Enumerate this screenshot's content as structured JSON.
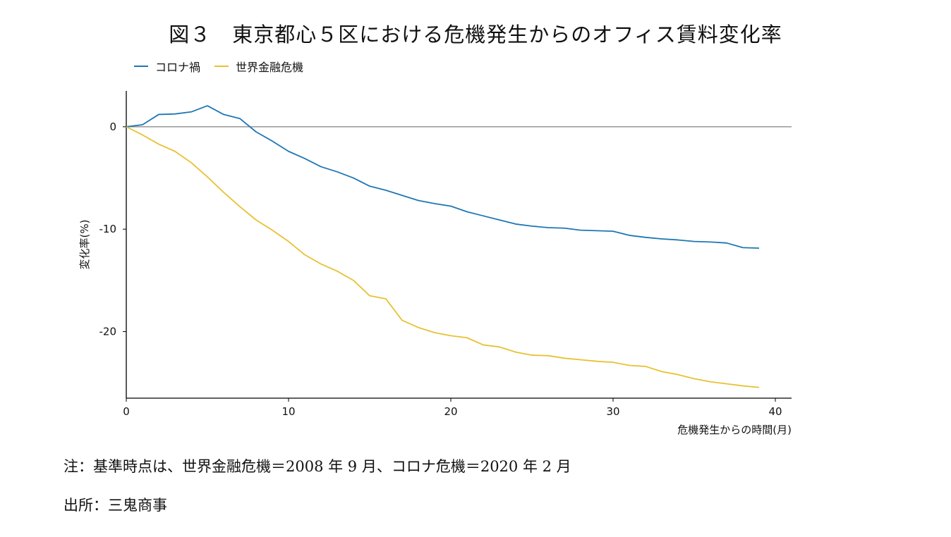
{
  "figure": {
    "title": "図３　東京都心５区における危機発生からのオフィス賃料変化率",
    "note": "注：基準時点は、世界金融危機＝2008 年 9 月、コロナ危機＝2020 年 2 月",
    "source": "出所：三鬼商事"
  },
  "chart_data": {
    "type": "line",
    "xlabel": "危機発生からの時間(月)",
    "ylabel": "変化率(%)",
    "xlim": [
      0,
      41
    ],
    "ylim": [
      -26.5,
      3.5
    ],
    "xticks": [
      0,
      10,
      20,
      30,
      40
    ],
    "yticks": [
      0,
      -10,
      -20
    ],
    "grid": false,
    "legend_position": "top-left",
    "zero_line": true,
    "series": [
      {
        "name": "コロナ禍",
        "color": "#1f77b4",
        "x": [
          0,
          1,
          2,
          3,
          4,
          5,
          6,
          7,
          8,
          9,
          10,
          11,
          12,
          13,
          14,
          15,
          16,
          17,
          18,
          19,
          20,
          21,
          22,
          23,
          24,
          25,
          26,
          27,
          28,
          29,
          30,
          31,
          32,
          33,
          34,
          35,
          36,
          37,
          38,
          39
        ],
        "values": [
          0,
          0.2,
          1.2,
          1.25,
          1.45,
          2.05,
          1.2,
          0.8,
          -0.5,
          -1.4,
          -2.4,
          -3.1,
          -3.9,
          -4.4,
          -5.0,
          -5.8,
          -6.2,
          -6.7,
          -7.2,
          -7.5,
          -7.75,
          -8.3,
          -8.7,
          -9.1,
          -9.5,
          -9.7,
          -9.85,
          -9.9,
          -10.1,
          -10.15,
          -10.2,
          -10.6,
          -10.8,
          -10.95,
          -11.05,
          -11.2,
          -11.25,
          -11.35,
          -11.8,
          -11.85
        ]
      },
      {
        "name": "世界金融危機",
        "color": "#e8c133",
        "x": [
          0,
          1,
          2,
          3,
          4,
          5,
          6,
          7,
          8,
          9,
          10,
          11,
          12,
          13,
          14,
          15,
          16,
          17,
          18,
          19,
          20,
          21,
          22,
          23,
          24,
          25,
          26,
          27,
          28,
          29,
          30,
          31,
          32,
          33,
          34,
          35,
          36,
          37,
          38,
          39
        ],
        "values": [
          0,
          -0.8,
          -1.7,
          -2.4,
          -3.5,
          -4.9,
          -6.4,
          -7.8,
          -9.1,
          -10.1,
          -11.2,
          -12.5,
          -13.4,
          -14.1,
          -15.0,
          -16.5,
          -16.8,
          -18.9,
          -19.6,
          -20.1,
          -20.4,
          -20.6,
          -21.3,
          -21.5,
          -22.0,
          -22.3,
          -22.35,
          -22.6,
          -22.75,
          -22.9,
          -23.0,
          -23.3,
          -23.4,
          -23.9,
          -24.2,
          -24.6,
          -24.9,
          -25.1,
          -25.3,
          -25.45
        ]
      }
    ]
  }
}
